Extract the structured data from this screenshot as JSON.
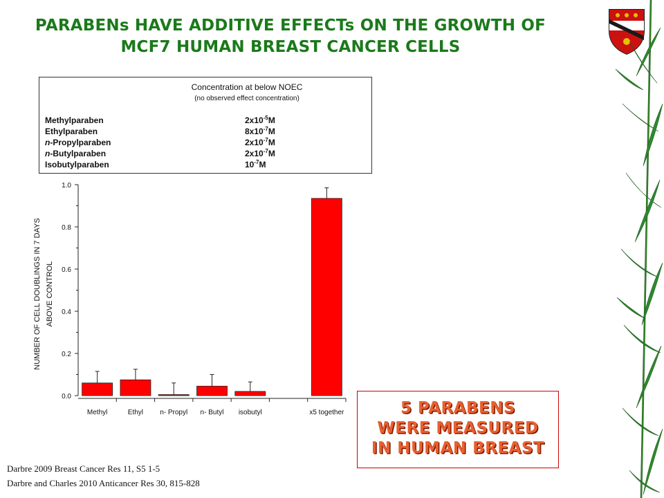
{
  "slide": {
    "title_line1": "PARABENs HAVE ADDITIVE EFFECTs ON THE GROWTH OF",
    "title_line2": "MCF7 HUMAN BREAST CANCER CELLS"
  },
  "concentration_table": {
    "title": "Concentration  at below NOEC",
    "subtitle": "(no observed effect concentration)",
    "rows": [
      {
        "prefix": "",
        "name": "Methylparaben",
        "base": "2x10",
        "exp": "-5",
        "unit": "M"
      },
      {
        "prefix": "",
        "name": "Ethylparaben",
        "base": "8x10",
        "exp": "-7",
        "unit": "M"
      },
      {
        "prefix": "n",
        "name": "-Propylparaben",
        "base": "2x10",
        "exp": "-7",
        "unit": "M"
      },
      {
        "prefix": "n",
        "name": "-Butylparaben",
        "base": "2x10",
        "exp": "-7",
        "unit": "M"
      },
      {
        "prefix": "",
        "name": "Isobutylparaben",
        "base": "10",
        "exp": "-7",
        "unit": "M"
      }
    ]
  },
  "chart_data": {
    "type": "bar",
    "ylabel_line1": "NUMBER OF CELL DOUBLINGS IN 7 DAYS",
    "ylabel_line2": "ABOVE CONTROL",
    "xlabel": "",
    "ylim": [
      0,
      1.0
    ],
    "yticks": [
      "0.0",
      "0.2",
      "0.4",
      "0.6",
      "0.8",
      "1.0"
    ],
    "ytick_values": [
      0.0,
      0.2,
      0.4,
      0.6,
      0.8,
      1.0
    ],
    "categories": [
      "Methyl",
      "Ethyl",
      "n- Propyl",
      "n- Butyl",
      "isobutyl",
      "",
      "x5 together"
    ],
    "values": [
      0.06,
      0.075,
      0.005,
      0.045,
      0.02,
      null,
      0.935
    ],
    "errors": [
      0.055,
      0.05,
      0.055,
      0.055,
      0.045,
      null,
      0.05
    ],
    "bar_color": "#ff0000",
    "grid": false
  },
  "callout": {
    "lines": [
      "5 PARABENS",
      "WERE MEASURED",
      "IN HUMAN BREAST"
    ]
  },
  "references": [
    "Darbre 2009 Breast Cancer Res 11, S5 1-5",
    "Darbre and Charles 2010 Anticancer Res 30, 815-828"
  ]
}
